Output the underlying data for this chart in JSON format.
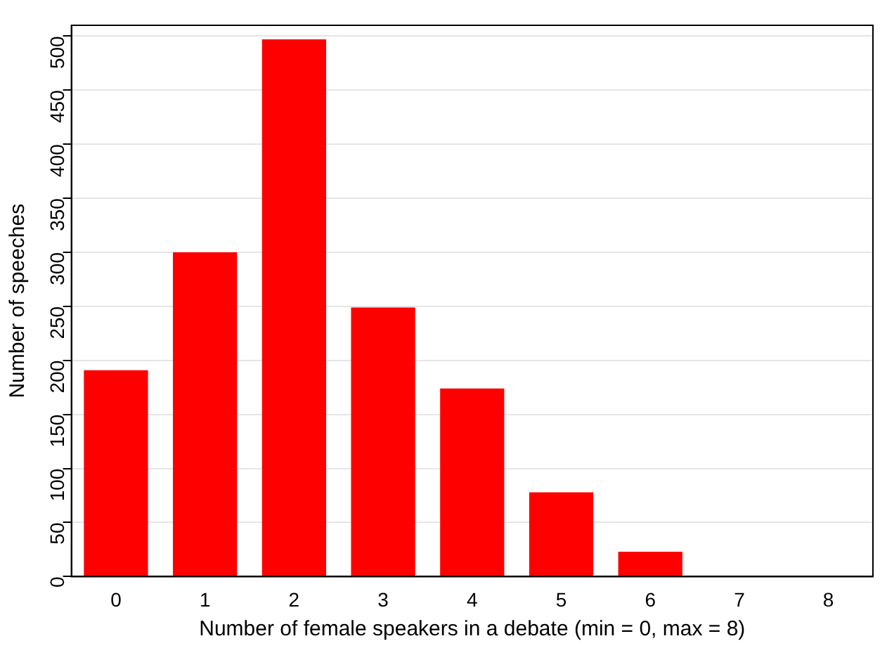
{
  "chart_data": {
    "type": "bar",
    "xlabel": "Number of female speakers in a debate (min = 0, max = 8)",
    "ylabel": "Number of speeches",
    "categories": [
      "0",
      "1",
      "2",
      "3",
      "4",
      "5",
      "6",
      "7",
      "8"
    ],
    "values": [
      191,
      300,
      497,
      249,
      174,
      78,
      23,
      0,
      0
    ],
    "color": "#ff0000",
    "ylim": [
      0,
      510
    ],
    "yticks": [
      0,
      50,
      100,
      150,
      200,
      250,
      300,
      350,
      400,
      450,
      500
    ],
    "grid": "y"
  }
}
